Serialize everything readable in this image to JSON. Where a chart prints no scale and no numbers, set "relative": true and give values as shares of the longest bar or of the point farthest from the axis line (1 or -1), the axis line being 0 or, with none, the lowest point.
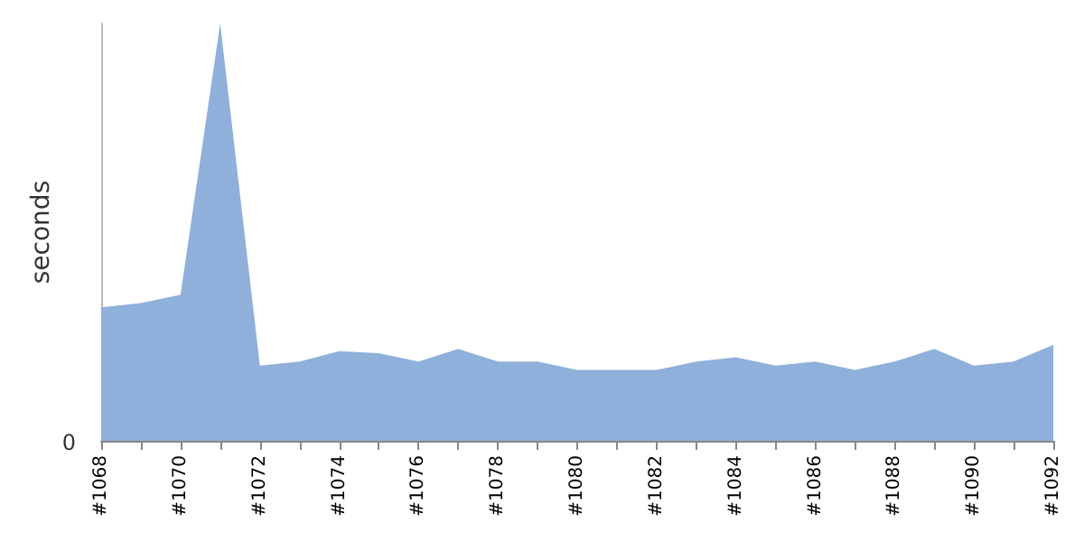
{
  "chart_data": {
    "type": "area",
    "ylabel": "seconds",
    "relative": true,
    "annotations": [
      "0"
    ],
    "color": "#8fb0da",
    "categories": [
      "#1068",
      null,
      "#1070",
      null,
      "#1072",
      null,
      "#1074",
      null,
      "#1076",
      null,
      "#1078",
      null,
      "#1080",
      null,
      "#1082",
      null,
      "#1084",
      null,
      "#1086",
      null,
      "#1088",
      null,
      "#1090",
      null,
      "#1092"
    ],
    "values": [
      0.32,
      0.33,
      0.35,
      1,
      0.18,
      0.19,
      0.215,
      0.21,
      0.19,
      0.22,
      0.19,
      0.19,
      0.17,
      0.17,
      0.17,
      0.19,
      0.2,
      0.18,
      0.19,
      0.17,
      0.19,
      0.22,
      0.18,
      0.19,
      0.23
    ],
    "grid": false
  }
}
